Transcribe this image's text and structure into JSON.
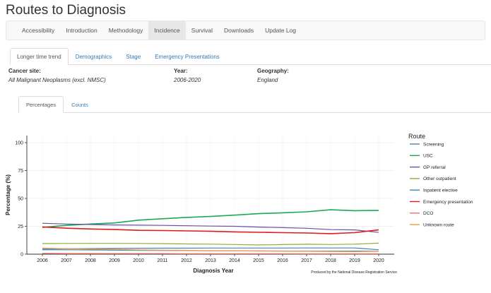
{
  "page": {
    "title": "Routes to Diagnosis"
  },
  "navbar": {
    "items": [
      {
        "label": "Accessibility",
        "active": false
      },
      {
        "label": "Introduction",
        "active": false
      },
      {
        "label": "Methodology",
        "active": false
      },
      {
        "label": "Incidence",
        "active": true
      },
      {
        "label": "Survival",
        "active": false
      },
      {
        "label": "Downloads",
        "active": false
      },
      {
        "label": "Update Log",
        "active": false
      }
    ]
  },
  "tabs": {
    "items": [
      {
        "label": "Longer time trend",
        "active": true
      },
      {
        "label": "Demographics",
        "active": false
      },
      {
        "label": "Stage",
        "active": false
      },
      {
        "label": "Emergency Presentations",
        "active": false
      }
    ]
  },
  "info": {
    "cancer_site": {
      "label": "Cancer site:",
      "value": "All Malignant Neoplasms (excl. NMSC)"
    },
    "year": {
      "label": "Year:",
      "value": "2006-2020"
    },
    "geography": {
      "label": "Geography:",
      "value": "England"
    }
  },
  "subtabs": {
    "items": [
      {
        "label": "Percentages",
        "active": true
      },
      {
        "label": "Counts",
        "active": false
      }
    ]
  },
  "chart_data": {
    "type": "line",
    "title": "",
    "xlabel": "Diagnosis Year",
    "ylabel": "Percentage (%)",
    "xlim": [
      2006,
      2020
    ],
    "ylim": [
      0,
      100
    ],
    "yticks": [
      0,
      25,
      50,
      75,
      100
    ],
    "x": [
      2006,
      2007,
      2008,
      2009,
      2010,
      2011,
      2012,
      2013,
      2014,
      2015,
      2016,
      2017,
      2018,
      2019,
      2020
    ],
    "grid": true,
    "legend_title": "Route",
    "legend_placement": "right",
    "caption": "Produced by the National Disease Registration Service",
    "series": [
      {
        "name": "Screening",
        "color": "#4c7fb5",
        "values": [
          4.5,
          4.8,
          5.0,
          5.1,
          5.3,
          5.4,
          5.4,
          5.5,
          5.5,
          5.5,
          5.5,
          5.6,
          5.6,
          5.6,
          4.0
        ]
      },
      {
        "name": "USC",
        "color": "#1aaa55",
        "values": [
          24.0,
          25.8,
          27.0,
          28.0,
          30.5,
          31.8,
          33.0,
          33.8,
          35.0,
          36.3,
          37.1,
          38.0,
          39.8,
          39.0,
          39.2
        ]
      },
      {
        "name": "GP referral",
        "color": "#6a51a3",
        "values": [
          27.7,
          27.0,
          26.6,
          26.2,
          26.0,
          25.8,
          25.5,
          25.2,
          25.0,
          24.3,
          23.8,
          23.2,
          22.0,
          21.8,
          19.5
        ]
      },
      {
        "name": "Other outpatient",
        "color": "#8db030",
        "values": [
          9.5,
          9.6,
          9.7,
          9.7,
          9.6,
          9.4,
          9.2,
          9.0,
          8.7,
          8.3,
          8.6,
          8.9,
          8.7,
          9.0,
          9.9
        ]
      },
      {
        "name": "Inpatient elective",
        "color": "#2c8fb8",
        "values": [
          3.9,
          3.9,
          3.8,
          3.6,
          3.4,
          3.3,
          3.2,
          3.0,
          2.9,
          2.9,
          2.8,
          2.8,
          2.8,
          2.8,
          2.7
        ]
      },
      {
        "name": "Emergency presentation",
        "color": "#e31a1c",
        "values": [
          24.4,
          23.3,
          22.6,
          22.1,
          21.4,
          21.2,
          20.9,
          20.5,
          20.0,
          19.6,
          19.3,
          19.0,
          18.4,
          19.3,
          21.8
        ]
      },
      {
        "name": "DCO",
        "color": "#f46d6d",
        "values": [
          0.7,
          0.6,
          0.6,
          0.5,
          0.5,
          0.5,
          0.4,
          0.4,
          0.4,
          0.4,
          0.4,
          0.3,
          0.3,
          0.3,
          0.3
        ]
      },
      {
        "name": "Unknown route",
        "color": "#f59b3c",
        "values": [
          5.4,
          4.9,
          4.5,
          4.3,
          3.8,
          3.6,
          3.4,
          3.1,
          3.0,
          2.8,
          2.7,
          2.6,
          2.5,
          2.3,
          2.6
        ]
      }
    ]
  }
}
